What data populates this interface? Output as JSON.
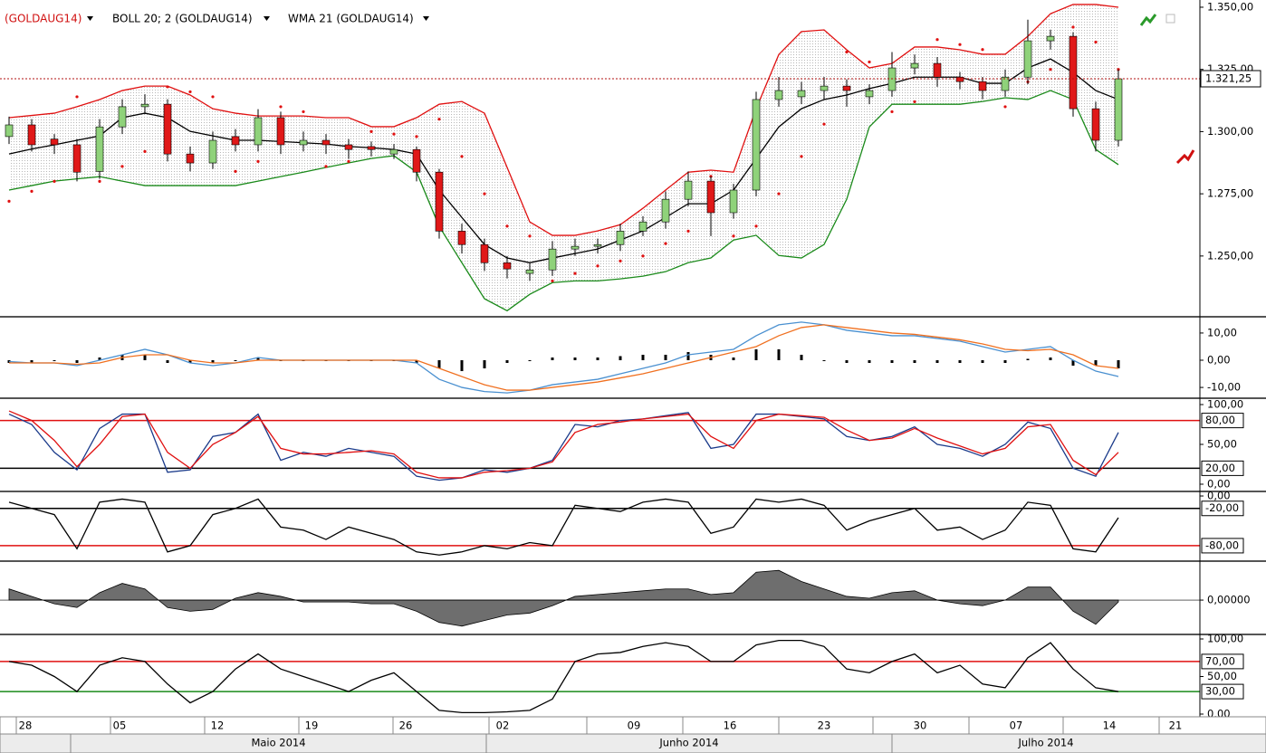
{
  "chart_data": [
    {
      "type": "candlestick",
      "legend": [
        "(GOLDAUG14)",
        "BOLL 20; 2 (GOLDAUG14)",
        "WMA 21 (GOLDAUG14)"
      ],
      "ylim": [
        1226.3,
        1352.9
      ],
      "yticks": [
        {
          "value": 1350,
          "label": "1.350,00"
        },
        {
          "value": 1325,
          "label": "1.325,00"
        },
        {
          "value": 1300,
          "label": "1.300,00"
        },
        {
          "value": 1275,
          "label": "1.275,00"
        },
        {
          "value": 1250,
          "label": "1.250,00"
        }
      ],
      "last_price": {
        "value": 1321.25,
        "label": "1.321,25"
      },
      "up_color": "#8fd27a",
      "down_color": "#e01818",
      "candles": [
        [
          1298,
          1306,
          1295,
          1302.7
        ],
        [
          1302.7,
          1305,
          1292,
          1294.7
        ],
        [
          1297,
          1299,
          1291,
          1294.7
        ],
        [
          1294.7,
          1297,
          1280,
          1283.7
        ],
        [
          1284,
          1305,
          1281,
          1301.9
        ],
        [
          1301.9,
          1313,
          1299,
          1310
        ],
        [
          1310,
          1315,
          1307,
          1311
        ],
        [
          1311,
          1313,
          1288,
          1291
        ],
        [
          1291,
          1294,
          1284,
          1287.4
        ],
        [
          1287.4,
          1300,
          1285,
          1296.5
        ],
        [
          1298,
          1301,
          1292,
          1294.7
        ],
        [
          1294.7,
          1309,
          1292,
          1305.6
        ],
        [
          1305.6,
          1308,
          1291,
          1294.7
        ],
        [
          1294.7,
          1300,
          1292,
          1296.5
        ],
        [
          1296.5,
          1299,
          1291,
          1294.7
        ],
        [
          1294.7,
          1297,
          1289,
          1292.8
        ],
        [
          1294,
          1296,
          1290,
          1292.8
        ],
        [
          1291,
          1295,
          1289,
          1292.8
        ],
        [
          1292.8,
          1294,
          1280,
          1283.7
        ],
        [
          1283.7,
          1285,
          1257,
          1260
        ],
        [
          1260,
          1263,
          1251,
          1254.6
        ],
        [
          1254.6,
          1257,
          1244,
          1247.3
        ],
        [
          1247.3,
          1250,
          1241,
          1244.8
        ],
        [
          1243,
          1247,
          1240,
          1244.4
        ],
        [
          1244.4,
          1256,
          1242,
          1252.8
        ],
        [
          1252.8,
          1257,
          1250,
          1253.9
        ],
        [
          1253.9,
          1257,
          1251,
          1254.6
        ],
        [
          1254.6,
          1263,
          1252,
          1260
        ],
        [
          1260,
          1266,
          1258,
          1263.7
        ],
        [
          1263.7,
          1276,
          1261,
          1272.8
        ],
        [
          1272.8,
          1284,
          1270,
          1280.1
        ],
        [
          1280.1,
          1282,
          1258,
          1267.4
        ],
        [
          1267.4,
          1279,
          1265,
          1276.5
        ],
        [
          1276.5,
          1316,
          1274,
          1312.9
        ],
        [
          1312.9,
          1322,
          1310,
          1316.5
        ],
        [
          1314,
          1320,
          1311,
          1316.5
        ],
        [
          1316.5,
          1322,
          1313,
          1318.3
        ],
        [
          1318.3,
          1321,
          1310,
          1316.5
        ],
        [
          1314,
          1319,
          1311,
          1316.5
        ],
        [
          1316.5,
          1332,
          1314,
          1325.6
        ],
        [
          1325.6,
          1331,
          1323,
          1327.4
        ],
        [
          1327.4,
          1330,
          1318,
          1321.9
        ],
        [
          1321.9,
          1324,
          1317,
          1320.1
        ],
        [
          1320.1,
          1322,
          1313,
          1316.5
        ],
        [
          1316.5,
          1325,
          1314,
          1321.9
        ],
        [
          1321.9,
          1345,
          1319,
          1336.5
        ],
        [
          1336.5,
          1341,
          1333,
          1338.3
        ],
        [
          1338.3,
          1340,
          1306,
          1309.2
        ],
        [
          1309.2,
          1312,
          1292,
          1296.5
        ],
        [
          1296.5,
          1325,
          1294,
          1321.2
        ]
      ],
      "upper": {
        "color": "#e01010",
        "values": [
          1305.6,
          1306.5,
          1307.4,
          1310,
          1312.9,
          1316.5,
          1318.3,
          1318.3,
          1314.7,
          1309.2,
          1307.4,
          1306.3,
          1306.3,
          1306.3,
          1305.6,
          1305.6,
          1302,
          1302,
          1305.6,
          1311,
          1312.1,
          1307.4,
          1285.6,
          1263.7,
          1258.3,
          1258.3,
          1260.1,
          1262.6,
          1269.2,
          1276.5,
          1283.7,
          1284.5,
          1283.7,
          1309.2,
          1331,
          1340.2,
          1340.9,
          1332.9,
          1325.6,
          1327.4,
          1334,
          1334,
          1332.9,
          1331.1,
          1331.1,
          1338.3,
          1347.4,
          1351.1,
          1351.1,
          1350
        ]
      },
      "lower": {
        "color": "#1a8a1a",
        "values": [
          1276.5,
          1278.3,
          1280.1,
          1281,
          1281.9,
          1280.1,
          1278.3,
          1278.3,
          1278.3,
          1278.3,
          1278.3,
          1280.1,
          1281.9,
          1283.7,
          1285.6,
          1287.4,
          1289.2,
          1290.3,
          1283.7,
          1261.9,
          1247.3,
          1232.8,
          1228,
          1234.6,
          1239.3,
          1240,
          1240,
          1240.8,
          1241.9,
          1243.7,
          1247.3,
          1249.2,
          1256.4,
          1258.3,
          1250.2,
          1249.2,
          1254.6,
          1272.8,
          1301.9,
          1311,
          1311,
          1311,
          1311,
          1312.1,
          1313.6,
          1312.9,
          1316.5,
          1312.9,
          1292.8,
          1286.7
        ]
      },
      "wma": {
        "color": "#000000",
        "values": [
          1291,
          1293,
          1294.7,
          1296.5,
          1298.3,
          1305.6,
          1307.4,
          1305.6,
          1300.1,
          1298.3,
          1296.5,
          1296.5,
          1296,
          1295.5,
          1295,
          1294,
          1293.5,
          1292.8,
          1291,
          1276.5,
          1265.5,
          1254.6,
          1249.2,
          1247.3,
          1249.2,
          1251,
          1252.8,
          1256.4,
          1260.1,
          1265.5,
          1271,
          1271,
          1276.5,
          1289.2,
          1301.9,
          1309.2,
          1312.9,
          1314.7,
          1317.3,
          1319.4,
          1321.9,
          1321.9,
          1321.9,
          1319.4,
          1319.4,
          1325.6,
          1329.2,
          1323.8,
          1316.5,
          1312.9
        ]
      },
      "sar": {
        "color": "#e01010",
        "values": [
          1272,
          1276,
          1280,
          1314,
          1280,
          1286,
          1292,
          1318,
          1316,
          1314,
          1284,
          1288,
          1310,
          1308,
          1286,
          1288,
          1300,
          1299,
          1298,
          1305,
          1290,
          1275,
          1262,
          1258,
          1240,
          1243,
          1246,
          1248,
          1250,
          1255,
          1260,
          1282,
          1258,
          1262,
          1275,
          1290,
          1303,
          1332,
          1328,
          1308,
          1312,
          1337,
          1335,
          1333,
          1310,
          1320,
          1325,
          1342,
          1336,
          1325
        ]
      }
    },
    {
      "type": "macd",
      "ylim": [
        -13.3,
        15.3
      ],
      "yticks": [
        {
          "value": 10,
          "label": "10,00"
        },
        {
          "value": 0,
          "label": "0,00"
        },
        {
          "value": -10,
          "label": "-10,00"
        }
      ],
      "series": [
        {
          "color": "#4a90d0",
          "values": [
            -0.5,
            -1,
            -1,
            -2,
            0,
            2,
            4,
            2,
            -1,
            -2,
            -1,
            1,
            0,
            0,
            0,
            0,
            0,
            0,
            -1,
            -7,
            -10,
            -11.5,
            -12,
            -11,
            -9,
            -8,
            -7,
            -5,
            -3,
            -1,
            2,
            3,
            4,
            9,
            13,
            14,
            13,
            11,
            10,
            9,
            9,
            8,
            7,
            5,
            3,
            4,
            5,
            0,
            -4,
            -6
          ]
        },
        {
          "color": "#f07020",
          "values": [
            -1,
            -1,
            -1,
            -1.5,
            -1,
            1,
            2,
            2,
            0,
            -1,
            -1,
            0,
            0,
            0,
            0,
            0,
            0,
            0,
            0,
            -3,
            -6,
            -9,
            -11,
            -11,
            -10,
            -9,
            -8,
            -6.5,
            -5,
            -3,
            -1,
            1,
            3,
            5,
            9,
            12,
            13,
            12,
            11,
            10,
            9.5,
            8.5,
            7.5,
            6,
            4,
            3.5,
            4,
            2,
            -2,
            -3
          ]
        }
      ],
      "histogram": [
        -1,
        -1,
        0,
        -1,
        1,
        2,
        2,
        -1,
        -1,
        -1,
        0,
        1,
        0,
        0,
        0,
        0,
        0,
        0,
        -1,
        -3,
        -4,
        -3,
        -1,
        0,
        1,
        1,
        1,
        1.5,
        2,
        2,
        3,
        2,
        1,
        4,
        4,
        2,
        0,
        -1,
        -1,
        -1,
        -1,
        -1,
        -1,
        -1,
        -1,
        0.5,
        1,
        -2,
        -2,
        -3
      ]
    },
    {
      "type": "line",
      "ylim": [
        -5.7,
        105.7
      ],
      "yticks": [
        {
          "value": 100,
          "label": "100,00"
        },
        {
          "value": 50,
          "label": "50,00"
        },
        {
          "value": 0,
          "label": "0,00"
        }
      ],
      "hlines": [
        {
          "value": 80,
          "label": "80,00",
          "color": "#e01010"
        },
        {
          "value": 20,
          "label": "20,00",
          "color": "#000000"
        }
      ],
      "series": [
        {
          "color": "#1a3a8a",
          "values": [
            88,
            75,
            40,
            18,
            70,
            88,
            88,
            15,
            18,
            60,
            65,
            88,
            30,
            40,
            35,
            45,
            40,
            35,
            10,
            5,
            8,
            18,
            15,
            20,
            30,
            75,
            72,
            80,
            82,
            86,
            90,
            45,
            50,
            88,
            88,
            85,
            82,
            60,
            55,
            60,
            72,
            50,
            45,
            35,
            50,
            78,
            70,
            20,
            10,
            65
          ]
        },
        {
          "color": "#e01010",
          "values": [
            92,
            80,
            55,
            22,
            50,
            85,
            88,
            40,
            20,
            50,
            65,
            85,
            45,
            38,
            38,
            40,
            42,
            38,
            15,
            8,
            8,
            15,
            17,
            20,
            28,
            65,
            75,
            78,
            82,
            85,
            88,
            60,
            45,
            80,
            88,
            86,
            84,
            68,
            55,
            58,
            70,
            58,
            48,
            38,
            45,
            72,
            75,
            30,
            12,
            40
          ]
        }
      ]
    },
    {
      "type": "line",
      "ylim": [
        -100.5,
        4.4
      ],
      "yticks": [
        {
          "value": 0,
          "label": "0,00"
        }
      ],
      "hlines": [
        {
          "value": -20,
          "label": "-20,00",
          "color": "#000000"
        },
        {
          "value": -80,
          "label": "-80,00",
          "color": "#e01010"
        }
      ],
      "series": [
        {
          "color": "#000000",
          "values": [
            -10,
            -20,
            -30,
            -85,
            -10,
            -5,
            -10,
            -90,
            -80,
            -30,
            -20,
            -5,
            -50,
            -55,
            -70,
            -50,
            -60,
            -70,
            -90,
            -95,
            -90,
            -80,
            -85,
            -75,
            -80,
            -15,
            -20,
            -25,
            -10,
            -5,
            -10,
            -60,
            -50,
            -5,
            -10,
            -5,
            -15,
            -55,
            -40,
            -30,
            -20,
            -55,
            -50,
            -70,
            -55,
            -10,
            -15,
            -85,
            -90,
            -35
          ]
        }
      ]
    },
    {
      "type": "area",
      "ylim": [
        -0.9,
        1
      ],
      "yticks": [
        {
          "value": 0,
          "label": "0,00000"
        }
      ],
      "series": [
        {
          "color": "#6e6e6e",
          "values": [
            0.3,
            0.1,
            -0.1,
            -0.2,
            0.2,
            0.45,
            0.3,
            -0.2,
            -0.3,
            -0.25,
            0.05,
            0.2,
            0.1,
            -0.05,
            -0.05,
            -0.05,
            -0.1,
            -0.1,
            -0.3,
            -0.6,
            -0.7,
            -0.55,
            -0.4,
            -0.35,
            -0.15,
            0.1,
            0.15,
            0.2,
            0.25,
            0.3,
            0.3,
            0.15,
            0.2,
            0.75,
            0.8,
            0.5,
            0.3,
            0.1,
            0.05,
            0.2,
            0.25,
            0,
            -0.1,
            -0.15,
            0,
            0.35,
            0.35,
            -0.3,
            -0.65,
            -0.05
          ]
        }
      ]
    },
    {
      "type": "line",
      "ylim": [
        -1.2,
        103.6
      ],
      "yticks": [
        {
          "value": 100,
          "label": "100,00"
        },
        {
          "value": 50,
          "label": "50,00"
        },
        {
          "value": 0,
          "label": "0,00"
        }
      ],
      "hlines": [
        {
          "value": 70,
          "label": "70,00",
          "color": "#e01010"
        },
        {
          "value": 30,
          "label": "30,00",
          "color": "#1a8a1a"
        }
      ],
      "series": [
        {
          "color": "#000000",
          "values": [
            70,
            65,
            50,
            30,
            65,
            75,
            70,
            40,
            15,
            30,
            60,
            80,
            60,
            50,
            40,
            30,
            45,
            55,
            30,
            5,
            2,
            2,
            3,
            5,
            20,
            70,
            80,
            82,
            90,
            95,
            90,
            70,
            70,
            92,
            98,
            98,
            90,
            60,
            55,
            70,
            80,
            55,
            65,
            40,
            35,
            75,
            95,
            60,
            35,
            30
          ]
        }
      ]
    }
  ],
  "time_axis": {
    "days": [
      "28",
      "05",
      "12",
      "19",
      "26",
      "02",
      "09",
      "16",
      "23",
      "30",
      "07",
      "14",
      "21"
    ],
    "months": [
      "Maio 2014",
      "Junho 2014",
      "Julho 2014"
    ]
  }
}
